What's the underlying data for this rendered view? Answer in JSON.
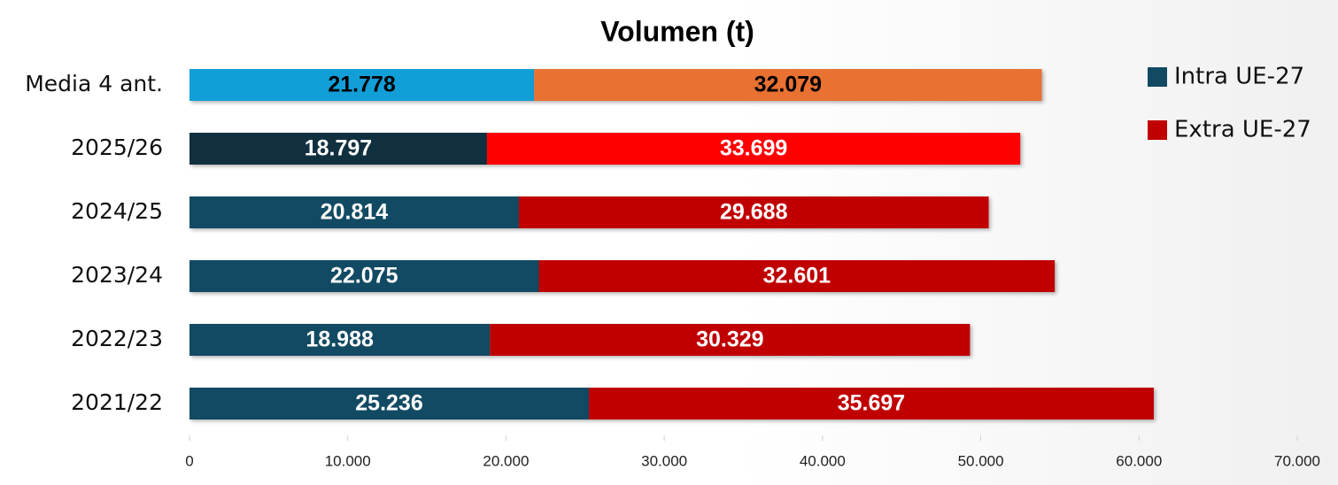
{
  "chart_data": {
    "type": "hbar_stacked",
    "title": "Volumen (t)",
    "categories": [
      "Media 4 ant.",
      "2025/26",
      "2024/25",
      "2023/24",
      "2022/23",
      "2021/22"
    ],
    "series": [
      {
        "name": "Intra UE-27",
        "color": "#124a63",
        "colors": [
          "#129fd8",
          "#11303f",
          "#124a63",
          "#124a63",
          "#124a63",
          "#124a63"
        ],
        "label_colors": [
          "#000000",
          "#ffffff",
          "#ffffff",
          "#ffffff",
          "#ffffff",
          "#ffffff"
        ],
        "values": [
          21778,
          18797,
          20814,
          22075,
          18988,
          25236
        ],
        "value_labels": [
          "21.778",
          "18.797",
          "20.814",
          "22.075",
          "18.988",
          "25.236"
        ]
      },
      {
        "name": "Extra UE-27",
        "color": "#c00000",
        "colors": [
          "#e97132",
          "#ff0000",
          "#c00000",
          "#c00000",
          "#c00000",
          "#c00000"
        ],
        "label_colors": [
          "#000000",
          "#ffffff",
          "#ffffff",
          "#ffffff",
          "#ffffff",
          "#ffffff"
        ],
        "values": [
          32079,
          33699,
          29688,
          32601,
          30329,
          35697
        ],
        "value_labels": [
          "32.079",
          "33.699",
          "29.688",
          "32.601",
          "30.329",
          "35.697"
        ]
      }
    ],
    "xlim": [
      0,
      70000
    ],
    "xticks": [
      0,
      {
        "value": 10000,
        "label": "10.000"
      },
      {
        "value": 20000,
        "label": "20.000"
      },
      {
        "value": 30000,
        "label": "30.000"
      },
      {
        "value": 40000,
        "label": "40.000"
      },
      {
        "value": 50000,
        "label": "50.000"
      },
      {
        "value": 60000,
        "label": "60.000"
      },
      {
        "value": 70000,
        "label": "70.000"
      }
    ],
    "legend": "right"
  }
}
